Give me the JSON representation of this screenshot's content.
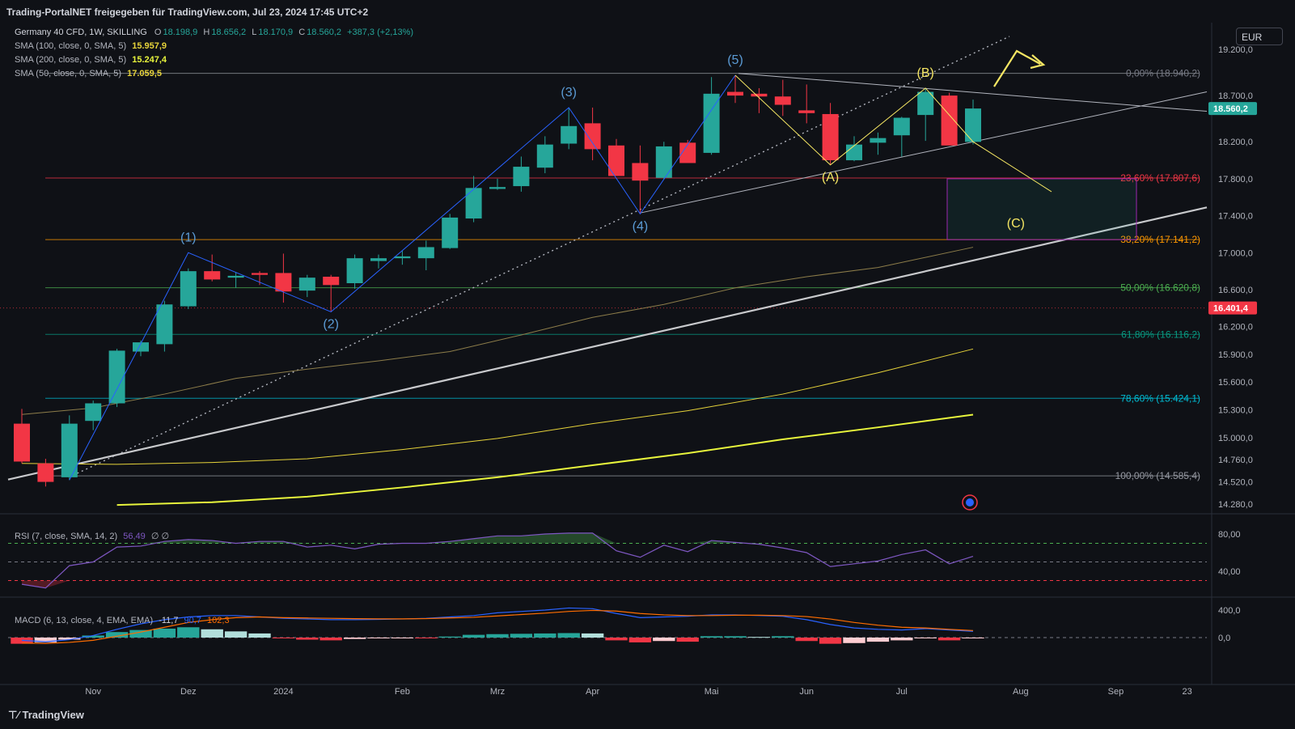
{
  "header": {
    "publisher": "Trading-PortalNET freigegeben für TradingView.com, Jul 23, 2024 17:45 UTC+2"
  },
  "legend": {
    "symbol": "Germany 40 CFD, 1W, SKILLING",
    "ohlc": {
      "o_label": "O",
      "o": "18.198,9",
      "h_label": "H",
      "h": "18.656,2",
      "l_label": "L",
      "l": "18.170,9",
      "c_label": "C",
      "c": "18.560,2",
      "chg": "+387,3 (+2,13%)"
    },
    "sma100": {
      "label": "SMA (100, close, 0, SMA, 5)",
      "value": "15.957,9"
    },
    "sma200": {
      "label": "SMA (200, close, 0, SMA, 5)",
      "value": "15.247,4"
    },
    "sma50": {
      "label": "SMA (50, close, 0, SMA, 5)",
      "value": "17.059,5"
    },
    "rsi": {
      "label": "RSI (7, close, SMA, 14, 2)",
      "value": "56,49",
      "extra": "∅ ∅"
    },
    "macd": {
      "label": "MACD (6, 13, close, 4, EMA, EMA)",
      "hist": "-11,7",
      "macd": "90,7",
      "signal": "102,3"
    }
  },
  "currency": "EUR",
  "brand": "TradingView",
  "colors": {
    "up": "#26a69a",
    "down": "#f23645",
    "sma50": "#8d7d4a",
    "sma100": "#e6d33a",
    "sma200": "#e8f53c",
    "blue_wave": "#2962ff",
    "wave_label": "#5b9bd5",
    "yellow_wave": "#f5e663"
  },
  "chart_data": {
    "type": "candlestick",
    "timeframe": "1W",
    "y_axis_ticks": [
      19200,
      18700,
      18200,
      17800,
      17400,
      17000,
      16600,
      16200,
      15900,
      15600,
      15300,
      15000,
      14760,
      14520,
      14280
    ],
    "y_axis_tick_labels": [
      "19.200,0",
      "18.700,0",
      "18.200,0",
      "17.800,0",
      "17.400,0",
      "17.000,0",
      "16.600,0",
      "16.200,0",
      "15.900,0",
      "15.600,0",
      "15.300,0",
      "15.000,0",
      "14.760,0",
      "14.520,0",
      "14.280,0"
    ],
    "x_axis_labels": [
      {
        "i": 3,
        "label": "Nov"
      },
      {
        "i": 7,
        "label": "Dez"
      },
      {
        "i": 11,
        "label": "2024"
      },
      {
        "i": 16,
        "label": "Feb"
      },
      {
        "i": 20,
        "label": "Mrz"
      },
      {
        "i": 24,
        "label": "Apr"
      },
      {
        "i": 29,
        "label": "Mai"
      },
      {
        "i": 33,
        "label": "Jun"
      },
      {
        "i": 37,
        "label": "Jul"
      },
      {
        "i": 42,
        "label": "Aug"
      },
      {
        "i": 46,
        "label": "Sep"
      },
      {
        "i": 49,
        "label": "23"
      }
    ],
    "candles": [
      {
        "o": 15150,
        "h": 15310,
        "l": 14720,
        "c": 14740
      },
      {
        "o": 14720,
        "h": 14770,
        "l": 14470,
        "c": 14520
      },
      {
        "o": 14570,
        "h": 15240,
        "l": 14540,
        "c": 15150
      },
      {
        "o": 15180,
        "h": 15400,
        "l": 15080,
        "c": 15370
      },
      {
        "o": 15370,
        "h": 15960,
        "l": 15330,
        "c": 15940
      },
      {
        "o": 15930,
        "h": 16050,
        "l": 15880,
        "c": 16030
      },
      {
        "o": 16010,
        "h": 16480,
        "l": 15930,
        "c": 16440
      },
      {
        "o": 16420,
        "h": 16830,
        "l": 16390,
        "c": 16800
      },
      {
        "o": 16800,
        "h": 16980,
        "l": 16690,
        "c": 16710
      },
      {
        "o": 16730,
        "h": 16790,
        "l": 16620,
        "c": 16750
      },
      {
        "o": 16780,
        "h": 16800,
        "l": 16650,
        "c": 16760
      },
      {
        "o": 16780,
        "h": 16990,
        "l": 16460,
        "c": 16580
      },
      {
        "o": 16590,
        "h": 16760,
        "l": 16520,
        "c": 16730
      },
      {
        "o": 16740,
        "h": 16760,
        "l": 16360,
        "c": 16650
      },
      {
        "o": 16670,
        "h": 16980,
        "l": 16610,
        "c": 16940
      },
      {
        "o": 16910,
        "h": 16980,
        "l": 16830,
        "c": 16940
      },
      {
        "o": 16940,
        "h": 17020,
        "l": 16870,
        "c": 16960
      },
      {
        "o": 16940,
        "h": 17130,
        "l": 16810,
        "c": 17060
      },
      {
        "o": 17050,
        "h": 17420,
        "l": 17040,
        "c": 17380
      },
      {
        "o": 17370,
        "h": 17830,
        "l": 17330,
        "c": 17700
      },
      {
        "o": 17690,
        "h": 17800,
        "l": 17680,
        "c": 17710
      },
      {
        "o": 17720,
        "h": 18040,
        "l": 17660,
        "c": 17930
      },
      {
        "o": 17920,
        "h": 18260,
        "l": 17860,
        "c": 18170
      },
      {
        "o": 18180,
        "h": 18570,
        "l": 18120,
        "c": 18370
      },
      {
        "o": 18400,
        "h": 18570,
        "l": 18000,
        "c": 18120
      },
      {
        "o": 18160,
        "h": 18230,
        "l": 17830,
        "c": 17830
      },
      {
        "o": 17970,
        "h": 18160,
        "l": 17420,
        "c": 17780
      },
      {
        "o": 17810,
        "h": 18200,
        "l": 17800,
        "c": 18150
      },
      {
        "o": 18190,
        "h": 18220,
        "l": 17980,
        "c": 17970
      },
      {
        "o": 18080,
        "h": 18900,
        "l": 18060,
        "c": 18720
      },
      {
        "o": 18740,
        "h": 18920,
        "l": 18620,
        "c": 18700
      },
      {
        "o": 18720,
        "h": 18780,
        "l": 18510,
        "c": 18690
      },
      {
        "o": 18690,
        "h": 18870,
        "l": 18480,
        "c": 18600
      },
      {
        "o": 18540,
        "h": 18820,
        "l": 18400,
        "c": 18510
      },
      {
        "o": 18500,
        "h": 18620,
        "l": 17950,
        "c": 18000
      },
      {
        "o": 18000,
        "h": 18260,
        "l": 17990,
        "c": 18170
      },
      {
        "o": 18190,
        "h": 18300,
        "l": 18060,
        "c": 18240
      },
      {
        "o": 18270,
        "h": 18470,
        "l": 18040,
        "c": 18460
      },
      {
        "o": 18490,
        "h": 18780,
        "l": 18210,
        "c": 18740
      },
      {
        "o": 18700,
        "h": 18730,
        "l": 18160,
        "c": 18160
      },
      {
        "o": 18199,
        "h": 18656,
        "l": 18171,
        "c": 18560
      }
    ],
    "sma50": [
      {
        "i": 0,
        "v": 15250
      },
      {
        "i": 3,
        "v": 15320
      },
      {
        "i": 6,
        "v": 15470
      },
      {
        "i": 9,
        "v": 15640
      },
      {
        "i": 12,
        "v": 15740
      },
      {
        "i": 15,
        "v": 15830
      },
      {
        "i": 18,
        "v": 15930
      },
      {
        "i": 21,
        "v": 16110
      },
      {
        "i": 24,
        "v": 16300
      },
      {
        "i": 27,
        "v": 16440
      },
      {
        "i": 30,
        "v": 16620
      },
      {
        "i": 33,
        "v": 16740
      },
      {
        "i": 36,
        "v": 16840
      },
      {
        "i": 40,
        "v": 17059
      }
    ],
    "sma100": [
      {
        "i": 0,
        "v": 14720
      },
      {
        "i": 4,
        "v": 14710
      },
      {
        "i": 8,
        "v": 14730
      },
      {
        "i": 12,
        "v": 14770
      },
      {
        "i": 16,
        "v": 14870
      },
      {
        "i": 20,
        "v": 14990
      },
      {
        "i": 24,
        "v": 15150
      },
      {
        "i": 28,
        "v": 15290
      },
      {
        "i": 32,
        "v": 15470
      },
      {
        "i": 36,
        "v": 15700
      },
      {
        "i": 40,
        "v": 15958
      }
    ],
    "sma200": [
      {
        "i": 4,
        "v": 14270
      },
      {
        "i": 8,
        "v": 14300
      },
      {
        "i": 12,
        "v": 14360
      },
      {
        "i": 16,
        "v": 14460
      },
      {
        "i": 20,
        "v": 14570
      },
      {
        "i": 24,
        "v": 14700
      },
      {
        "i": 28,
        "v": 14830
      },
      {
        "i": 32,
        "v": 14980
      },
      {
        "i": 36,
        "v": 15110
      },
      {
        "i": 40,
        "v": 15247
      }
    ],
    "fib_levels": [
      {
        "label": "0,00% (18.940,2)",
        "v": 18940.2
      },
      {
        "label": "23,60% (17.807,6)",
        "v": 17807.6
      },
      {
        "label": "38,20% (17.141,2)",
        "v": 17141.2
      },
      {
        "label": "50,00% (16.620,8)",
        "v": 16620.8
      },
      {
        "label": "61,80% (16.116,2)",
        "v": 16116.2
      },
      {
        "label": "78,60% (15.424,1)",
        "v": 15424.1
      },
      {
        "label": "100,00% (14.585,4)",
        "v": 14585.4
      }
    ],
    "wave_labels_blue": [
      {
        "label": "(1)",
        "i": 7,
        "v": 17000
      },
      {
        "label": "(2)",
        "i": 13,
        "v": 16360
      },
      {
        "label": "(3)",
        "i": 23,
        "v": 18570
      },
      {
        "label": "(4)",
        "i": 26,
        "v": 17420
      },
      {
        "label": "(5)",
        "i": 30,
        "v": 18920
      }
    ],
    "wave_labels_yellow": [
      {
        "label": "(A)",
        "i": 34,
        "v": 17950
      },
      {
        "label": "(B)",
        "i": 38,
        "v": 18780
      },
      {
        "label": "(C)",
        "i": 41.8,
        "v": 17450
      }
    ],
    "price_tags": [
      {
        "label": "18.560,2",
        "v": 18560.2,
        "color": "#26a69a"
      },
      {
        "label": "16.401,4",
        "v": 16401.4,
        "color": "#f23645"
      }
    ],
    "rsi": {
      "levels": [
        70,
        50,
        30
      ],
      "ticks_labels": [
        "80,00",
        "40,00"
      ],
      "ticks": [
        80,
        40
      ],
      "values": [
        26,
        22,
        46,
        50,
        66,
        67,
        72,
        74,
        73,
        70,
        72,
        72,
        66,
        68,
        64,
        69,
        70,
        70,
        72,
        75,
        78,
        78,
        80,
        81,
        81,
        62,
        55,
        68,
        61,
        73,
        71,
        69,
        65,
        60,
        45,
        48,
        51,
        58,
        63,
        48,
        56
      ]
    },
    "macd": {
      "ticks_labels": [
        "400,0",
        "0,0"
      ],
      "ticks": [
        400,
        0
      ],
      "hist": [
        -90,
        -70,
        -30,
        30,
        80,
        110,
        130,
        150,
        120,
        90,
        60,
        -10,
        -30,
        -40,
        -20,
        -10,
        -5,
        -10,
        15,
        40,
        50,
        55,
        60,
        65,
        60,
        -40,
        -70,
        -50,
        -60,
        20,
        20,
        10,
        20,
        -50,
        -90,
        -80,
        -60,
        -40,
        -10,
        -40,
        -12
      ],
      "macd": [
        -40,
        -60,
        -30,
        30,
        120,
        200,
        260,
        300,
        320,
        320,
        300,
        280,
        270,
        260,
        260,
        265,
        270,
        280,
        300,
        320,
        360,
        380,
        400,
        430,
        420,
        350,
        290,
        300,
        310,
        330,
        330,
        320,
        310,
        260,
        190,
        140,
        120,
        110,
        130,
        110,
        91
      ],
      "signal": [
        -80,
        -85,
        -70,
        -40,
        20,
        80,
        150,
        220,
        260,
        290,
        300,
        290,
        285,
        280,
        275,
        272,
        272,
        276,
        285,
        295,
        315,
        335,
        355,
        380,
        395,
        385,
        350,
        330,
        320,
        320,
        325,
        325,
        320,
        305,
        270,
        220,
        180,
        150,
        140,
        120,
        102
      ]
    }
  }
}
